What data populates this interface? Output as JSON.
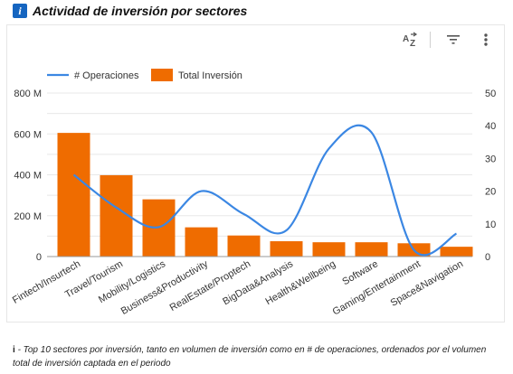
{
  "header": {
    "info_icon_glyph": "i",
    "title": "Actividad de inversión por sectores"
  },
  "toolbar": {
    "sort_icon": "sort-az-icon",
    "filter_icon": "filter-icon",
    "menu_icon": "more-vert-icon"
  },
  "chart_data": {
    "type": "bar",
    "title": "",
    "xlabel": "",
    "ylabel": "",
    "categories": [
      "Fintech/Insurtech",
      "Travel/Tourism",
      "Mobility/Logistics",
      "Business&Productivity",
      "RealEstate/Proptech",
      "BigData&Analysis",
      "Health&Wellbeing",
      "Software",
      "Gaming/Entertainment",
      "Space&Navigation"
    ],
    "series": [
      {
        "name": "Total Inversión",
        "type": "bar",
        "axis": "left",
        "color": "#ef6c00",
        "values": [
          605,
          398,
          280,
          143,
          103,
          75,
          70,
          70,
          65,
          48
        ]
      },
      {
        "name": "# Operaciones",
        "type": "line",
        "axis": "right",
        "color": "#3b87e3",
        "values": [
          25,
          15,
          9,
          20,
          13,
          8,
          33,
          38,
          2,
          7
        ]
      }
    ],
    "ylim_left": [
      0,
      800
    ],
    "yticks_left": [
      "0",
      "200 M",
      "400 M",
      "600 M",
      "800 M"
    ],
    "ylim_right": [
      0,
      50
    ],
    "yticks_right": [
      "0",
      "10",
      "20",
      "30",
      "40",
      "50"
    ],
    "grid": true,
    "legend_position": "top-left"
  },
  "footnote": {
    "marker": "i",
    "text": "- Top 10 sectores por inversión, tanto en volumen de inversión como en # de operaciones, ordenados por el volumen total de inversión captada en el periodo"
  }
}
